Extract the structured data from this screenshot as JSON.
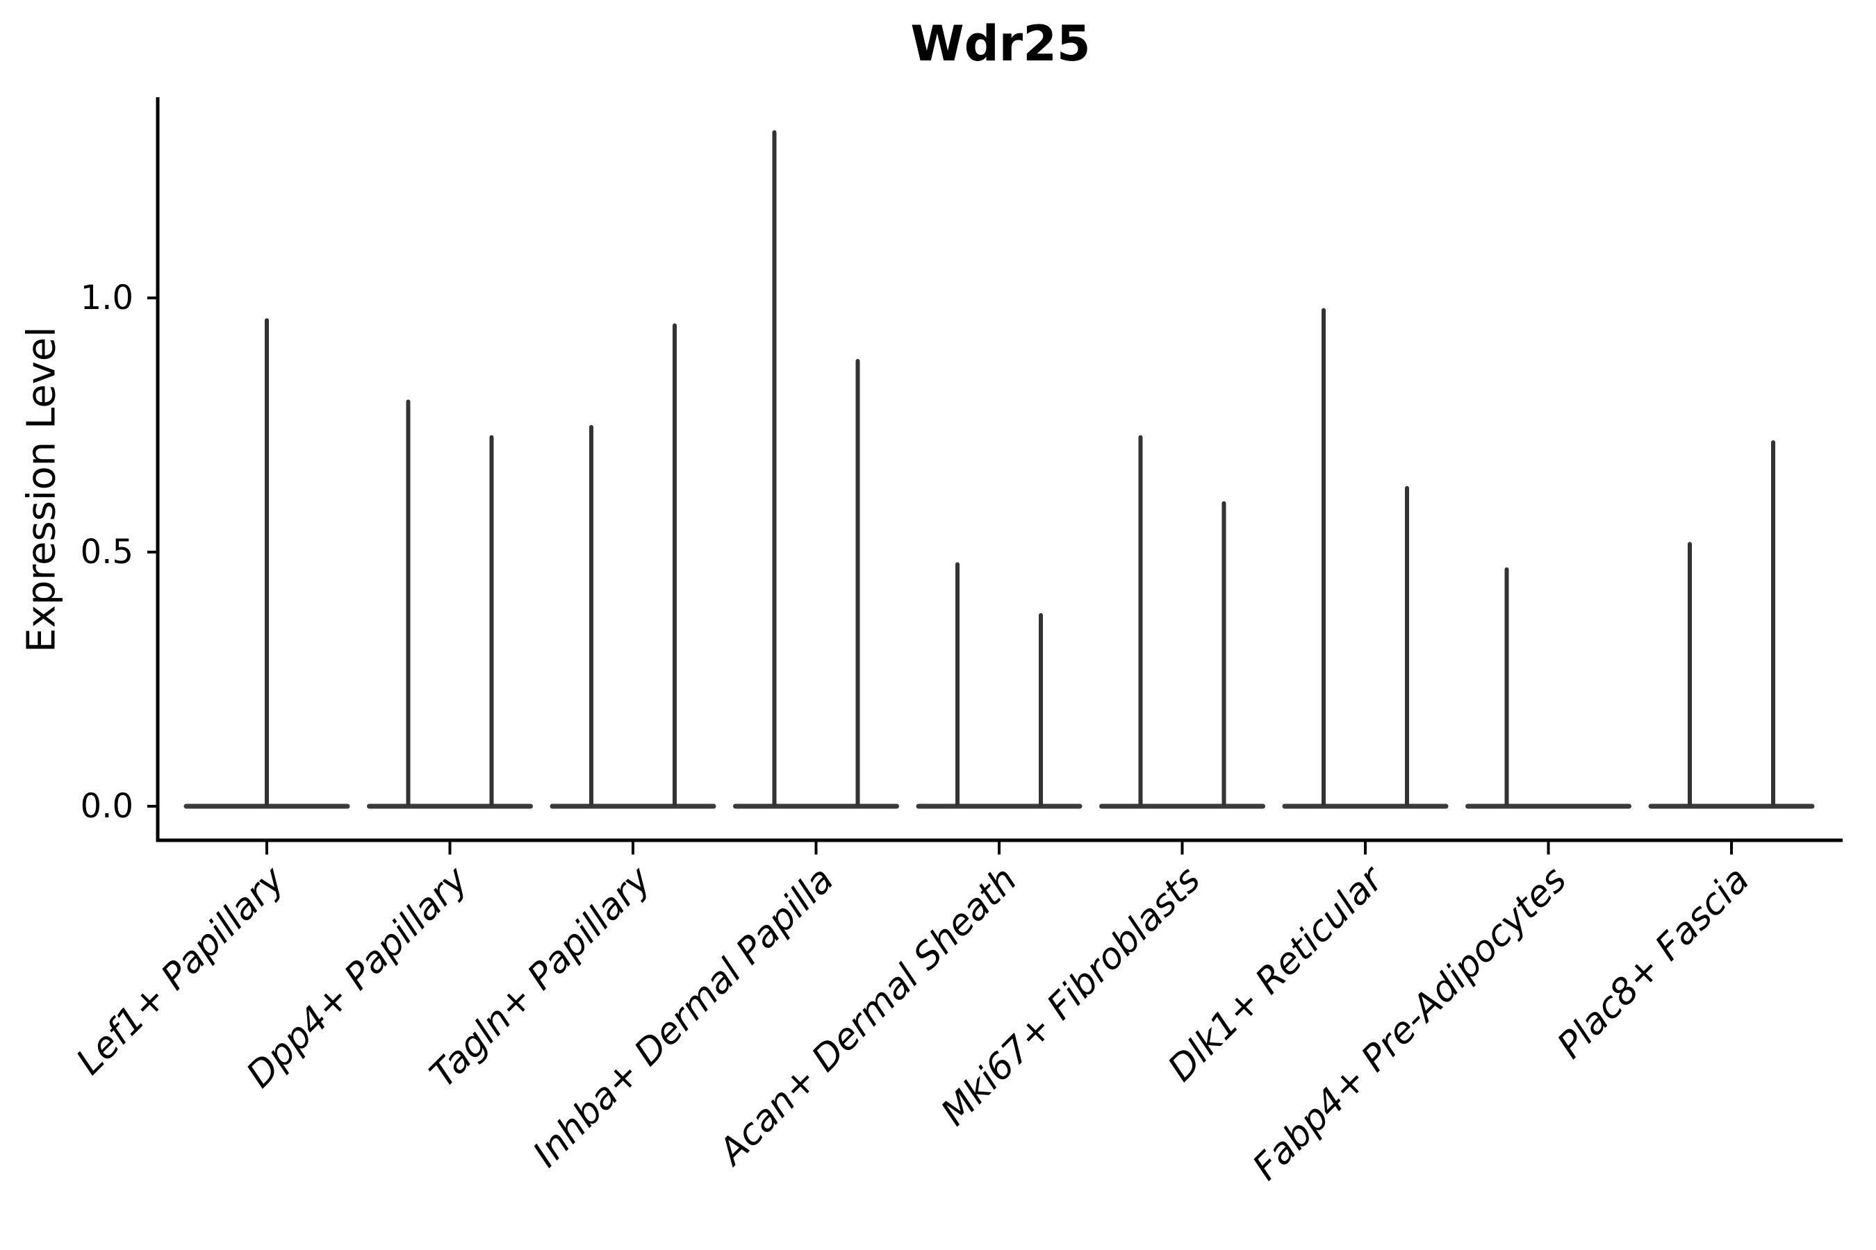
{
  "title": "Wdr25",
  "chart_data": {
    "type": "violin",
    "title": "Wdr25",
    "ylabel": "Expression Level",
    "xlabel": "",
    "ylim": [
      -0.07,
      1.39
    ],
    "grid": false,
    "legend": "none",
    "yticks": [
      {
        "value": 1.0,
        "label": "1.0"
      },
      {
        "value": 0.5,
        "label": "0.5"
      },
      {
        "value": 0.0,
        "label": "0.0"
      }
    ],
    "categories": [
      "Lef1+ Papillary",
      "Dpp4+ Papillary",
      "Tagln+ Papillary",
      "Inhba+ Dermal Papilla",
      "Acan+ Dermal Sheath",
      "Mki67+ Fibroblasts",
      "Dlk1+ Reticular",
      "Fabp4+ Pre-Adipocytes",
      "Plac8+ Fascia"
    ],
    "violins": [
      {
        "category": "Lef1+ Papillary",
        "spikes": [
          {
            "group": "center",
            "max": 0.96
          }
        ]
      },
      {
        "category": "Dpp4+ Papillary",
        "spikes": [
          {
            "group": "left",
            "max": 0.8
          },
          {
            "group": "right",
            "max": 0.73
          }
        ]
      },
      {
        "category": "Tagln+ Papillary",
        "spikes": [
          {
            "group": "left",
            "max": 0.75
          },
          {
            "group": "right",
            "max": 0.95
          }
        ]
      },
      {
        "category": "Inhba+ Dermal Papilla",
        "spikes": [
          {
            "group": "left",
            "max": 1.33
          },
          {
            "group": "right",
            "max": 0.88
          }
        ]
      },
      {
        "category": "Acan+ Dermal Sheath",
        "spikes": [
          {
            "group": "left",
            "max": 0.48
          },
          {
            "group": "right",
            "max": 0.38
          }
        ]
      },
      {
        "category": "Mki67+ Fibroblasts",
        "spikes": [
          {
            "group": "left",
            "max": 0.73
          },
          {
            "group": "right",
            "max": 0.6
          }
        ]
      },
      {
        "category": "Dlk1+ Reticular",
        "spikes": [
          {
            "group": "left",
            "max": 0.98
          },
          {
            "group": "right",
            "max": 0.63
          }
        ]
      },
      {
        "category": "Fabp4+ Pre-Adipocytes",
        "spikes": [
          {
            "group": "left",
            "max": 0.47
          }
        ]
      },
      {
        "category": "Plac8+ Fascia",
        "spikes": [
          {
            "group": "left",
            "max": 0.52
          },
          {
            "group": "right",
            "max": 0.72
          }
        ]
      }
    ],
    "colors": {
      "violin": "#333333",
      "violin_base": "#3a3a3a",
      "axis": "#000000",
      "text": "#000000",
      "background": "#ffffff"
    }
  }
}
